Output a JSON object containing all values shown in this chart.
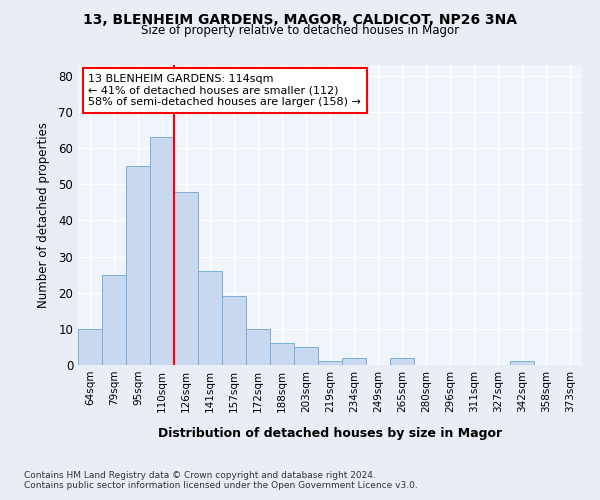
{
  "title1": "13, BLENHEIM GARDENS, MAGOR, CALDICOT, NP26 3NA",
  "title2": "Size of property relative to detached houses in Magor",
  "xlabel": "Distribution of detached houses by size in Magor",
  "ylabel": "Number of detached properties",
  "categories": [
    "64sqm",
    "79sqm",
    "95sqm",
    "110sqm",
    "126sqm",
    "141sqm",
    "157sqm",
    "172sqm",
    "188sqm",
    "203sqm",
    "219sqm",
    "234sqm",
    "249sqm",
    "265sqm",
    "280sqm",
    "296sqm",
    "311sqm",
    "327sqm",
    "342sqm",
    "358sqm",
    "373sqm"
  ],
  "values": [
    10,
    25,
    55,
    63,
    48,
    26,
    19,
    10,
    6,
    5,
    1,
    2,
    0,
    2,
    0,
    0,
    0,
    0,
    1,
    0,
    0
  ],
  "bar_color": "#c8d8ee",
  "bar_edge_color": "#7aafd4",
  "vline_index": 3.5,
  "annotation_line1": "13 BLENHEIM GARDENS: 114sqm",
  "annotation_line2": "← 41% of detached houses are smaller (112)",
  "annotation_line3": "58% of semi-detached houses are larger (158) →",
  "ylim": [
    0,
    83
  ],
  "yticks": [
    0,
    10,
    20,
    30,
    40,
    50,
    60,
    70,
    80
  ],
  "footer1": "Contains HM Land Registry data © Crown copyright and database right 2024.",
  "footer2": "Contains public sector information licensed under the Open Government Licence v3.0.",
  "bg_color": "#f0f4fb",
  "outer_bg": "#e8edf6"
}
